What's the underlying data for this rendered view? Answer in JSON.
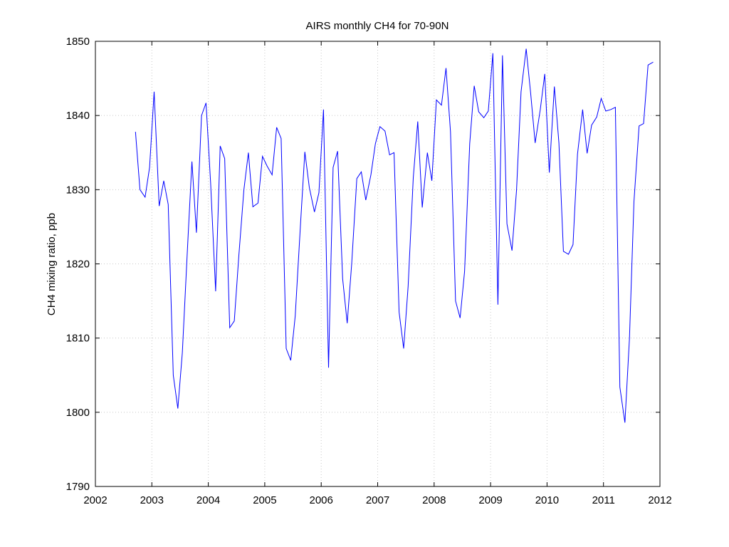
{
  "chart_data": {
    "type": "line",
    "title": "AIRS monthly CH4 for  70-90N",
    "ylabel": "CH4 mixing ratio, ppb",
    "xlabel": "",
    "xlim": [
      2002,
      2012
    ],
    "ylim": [
      1790,
      1850
    ],
    "xticks": [
      "2002",
      "2003",
      "2004",
      "2005",
      "2006",
      "2007",
      "2008",
      "2009",
      "2010",
      "2011",
      "2012"
    ],
    "yticks": [
      "1790",
      "1800",
      "1810",
      "1820",
      "1830",
      "1840",
      "1850"
    ],
    "grid": true,
    "line_color": "#0000ff",
    "series": [
      {
        "x": [
          2002.71,
          2002.79,
          2002.88,
          2002.96,
          2003.04,
          2003.13,
          2003.21,
          2003.29,
          2003.38,
          2003.46,
          2003.54,
          2003.63,
          2003.71,
          2003.79,
          2003.88,
          2003.96,
          2004.04,
          2004.13,
          2004.21,
          2004.29,
          2004.38,
          2004.46,
          2004.54,
          2004.63,
          2004.71,
          2004.79,
          2004.88,
          2004.96,
          2005.04,
          2005.13,
          2005.21,
          2005.29,
          2005.38,
          2005.46,
          2005.54,
          2005.63,
          2005.71,
          2005.79,
          2005.88,
          2005.96,
          2006.04,
          2006.13,
          2006.21,
          2006.29,
          2006.38,
          2006.46,
          2006.54,
          2006.63,
          2006.71,
          2006.79,
          2006.88,
          2006.96,
          2007.04,
          2007.13,
          2007.21,
          2007.29,
          2007.38,
          2007.46,
          2007.54,
          2007.63,
          2007.71,
          2007.79,
          2007.88,
          2007.96,
          2008.04,
          2008.13,
          2008.21,
          2008.29,
          2008.38,
          2008.46,
          2008.54,
          2008.63,
          2008.71,
          2008.79,
          2008.88,
          2008.96,
          2009.04,
          2009.13,
          2009.21,
          2009.29,
          2009.38,
          2009.46,
          2009.54,
          2009.63,
          2009.71,
          2009.79,
          2009.88,
          2009.96,
          2010.04,
          2010.13,
          2010.21,
          2010.29,
          2010.38,
          2010.46,
          2010.54,
          2010.63,
          2010.71,
          2010.79,
          2010.88,
          2010.96,
          2011.04,
          2011.13,
          2011.21,
          2011.29,
          2011.38,
          2011.46,
          2011.54,
          2011.63,
          2011.71,
          2011.79,
          2011.88
        ],
        "y": [
          1837.8,
          1830.0,
          1829.0,
          1833.0,
          1843.2,
          1827.8,
          1831.2,
          1828.0,
          1805.0,
          1800.5,
          1808.0,
          1822.0,
          1833.8,
          1824.2,
          1840.0,
          1841.7,
          1831.0,
          1816.3,
          1835.9,
          1834.2,
          1811.4,
          1812.3,
          1821.0,
          1830.0,
          1835.0,
          1827.7,
          1828.2,
          1834.5,
          1833.2,
          1832.0,
          1838.4,
          1836.9,
          1808.6,
          1807.0,
          1813.0,
          1825.0,
          1835.1,
          1830.3,
          1827.0,
          1829.6,
          1840.8,
          1806.0,
          1833.0,
          1835.2,
          1818.0,
          1812.0,
          1820.0,
          1831.5,
          1832.4,
          1828.6,
          1832.0,
          1836.2,
          1838.5,
          1837.9,
          1834.7,
          1835.0,
          1813.5,
          1808.6,
          1817.0,
          1831.6,
          1839.2,
          1827.6,
          1835.0,
          1831.2,
          1842.1,
          1841.4,
          1846.4,
          1837.8,
          1815.0,
          1812.7,
          1819.0,
          1836.2,
          1844.0,
          1840.5,
          1839.7,
          1840.6,
          1848.4,
          1814.5,
          1848.1,
          1825.4,
          1821.8,
          1830.0,
          1843.2,
          1849.0,
          1843.0,
          1836.3,
          1840.8,
          1845.6,
          1832.3,
          1843.9,
          1836.3,
          1821.7,
          1821.3,
          1822.6,
          1834.8,
          1840.8,
          1834.9,
          1838.7,
          1839.8,
          1842.3,
          1840.6,
          1840.8,
          1841.1,
          1803.4,
          1798.6,
          1810.0,
          1828.4,
          1838.6,
          1838.9,
          1846.8,
          1847.2
        ]
      }
    ]
  }
}
